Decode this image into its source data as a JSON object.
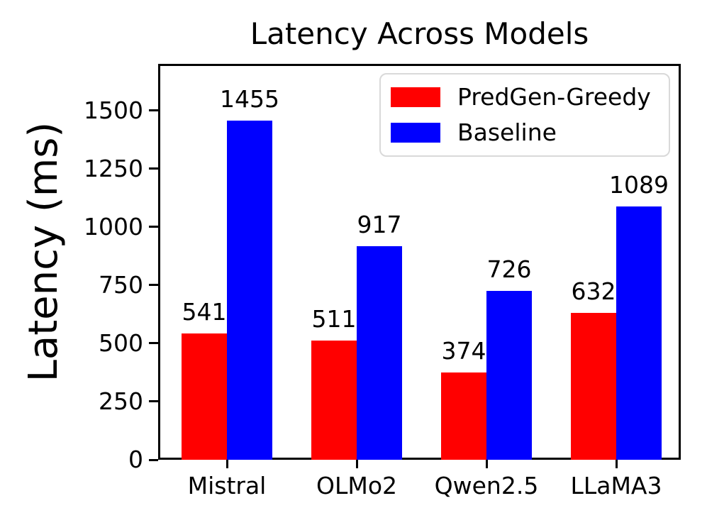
{
  "chart_data": {
    "type": "bar",
    "title": "Latency Across Models",
    "xlabel": "",
    "ylabel": "Latency (ms)",
    "categories": [
      "Mistral",
      "OLMo2",
      "Qwen2.5",
      "LLaMA3"
    ],
    "series": [
      {
        "name": "PredGen-Greedy",
        "color": "#ff0000",
        "values": [
          541,
          511,
          374,
          632
        ]
      },
      {
        "name": "Baseline",
        "color": "#0000ff",
        "values": [
          1455,
          917,
          726,
          1089
        ]
      }
    ],
    "yticks": [
      0,
      250,
      500,
      750,
      1000,
      1250,
      1500
    ],
    "ylim": [
      0,
      1700
    ],
    "grid": false,
    "bar_value_labels": true,
    "legend_position": "upper right",
    "axis_color": "#000000",
    "background_color": "#ffffff"
  }
}
